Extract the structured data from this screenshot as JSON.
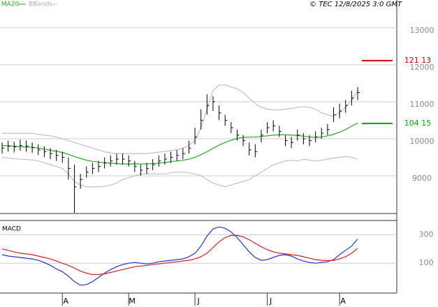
{
  "chart_data": {
    "type": "ohlc",
    "copyright": "© TEC 12/8/2025 3:0 GMT",
    "legend": [
      "MA20",
      "BBands"
    ],
    "ylim": [
      8000,
      13750
    ],
    "yticks": [
      9000,
      10000,
      11000,
      12000,
      13000
    ],
    "grid": true,
    "xticks": [
      {
        "value": 10,
        "label": "A"
      },
      {
        "value": 21,
        "label": "M"
      },
      {
        "value": 32,
        "label": "J"
      },
      {
        "value": 44,
        "label": "J"
      },
      {
        "value": 56,
        "label": "A"
      }
    ],
    "bar_color": "#000000",
    "close": [
      9750,
      9800,
      9780,
      9820,
      9800,
      9760,
      9700,
      9650,
      9600,
      9550,
      9500,
      9200,
      8700,
      8900,
      9100,
      9200,
      9250,
      9350,
      9400,
      9450,
      9450,
      9400,
      9250,
      9150,
      9200,
      9300,
      9400,
      9450,
      9500,
      9550,
      9600,
      9750,
      10050,
      10500,
      10900,
      11000,
      10700,
      10500,
      10300,
      10100,
      9950,
      9700,
      9650,
      10100,
      10300,
      10350,
      10200,
      9950,
      9900,
      10100,
      10000,
      9950,
      10050,
      10150,
      10250,
      10650,
      10750,
      10900,
      11100,
      11250
    ],
    "high": [
      9900,
      9950,
      9920,
      9980,
      9950,
      9900,
      9850,
      9800,
      9750,
      9700,
      9650,
      9500,
      9300,
      9050,
      9250,
      9350,
      9400,
      9500,
      9550,
      9600,
      9600,
      9550,
      9400,
      9300,
      9350,
      9450,
      9550,
      9600,
      9650,
      9700,
      9750,
      9950,
      10300,
      10800,
      11200,
      11150,
      10900,
      10650,
      10450,
      10250,
      10100,
      9900,
      9850,
      10250,
      10450,
      10500,
      10350,
      10100,
      10050,
      10250,
      10150,
      10100,
      10200,
      10300,
      10400,
      10850,
      10950,
      11050,
      11300,
      11400
    ],
    "low": [
      9600,
      9650,
      9630,
      9680,
      9650,
      9620,
      9560,
      9500,
      9450,
      9400,
      9350,
      8900,
      8000,
      8650,
      8950,
      9050,
      9100,
      9200,
      9250,
      9300,
      9300,
      9250,
      9100,
      9000,
      9050,
      9150,
      9250,
      9300,
      9350,
      9400,
      9450,
      9600,
      9850,
      10250,
      10650,
      10750,
      10500,
      10350,
      10150,
      9950,
      9800,
      9550,
      9500,
      9900,
      10150,
      10200,
      10050,
      9800,
      9750,
      9950,
      9850,
      9800,
      9900,
      10000,
      10100,
      10450,
      10550,
      10700,
      10900,
      11050
    ],
    "series": [
      {
        "name": "MA20",
        "color": "#22aa22",
        "values": [
          9820,
          9810,
          9800,
          9790,
          9780,
          9770,
          9750,
          9720,
          9690,
          9660,
          9630,
          9580,
          9520,
          9470,
          9420,
          9390,
          9370,
          9350,
          9340,
          9330,
          9320,
          9320,
          9320,
          9320,
          9320,
          9330,
          9340,
          9360,
          9380,
          9400,
          9420,
          9450,
          9500,
          9570,
          9650,
          9740,
          9830,
          9900,
          9960,
          10010,
          10040,
          10050,
          10050,
          10060,
          10080,
          10100,
          10110,
          10110,
          10100,
          10090,
          10070,
          10050,
          10040,
          10050,
          10080,
          10120,
          10180,
          10250,
          10340,
          10430
        ]
      },
      {
        "name": "BBands",
        "color": "#c0c0c0",
        "values": [
          10150,
          10150,
          10150,
          10150,
          10150,
          10150,
          10120,
          10100,
          10080,
          10050,
          10000,
          9950,
          9900,
          9850,
          9800,
          9750,
          9700,
          9650,
          9620,
          9600,
          9600,
          9600,
          9600,
          9600,
          9600,
          9620,
          9640,
          9660,
          9680,
          9700,
          9750,
          9820,
          9950,
          10300,
          10800,
          11300,
          11450,
          11450,
          11400,
          11350,
          11250,
          11100,
          10950,
          10850,
          10800,
          10780,
          10780,
          10800,
          10820,
          10850,
          10870,
          10850,
          10800,
          10700,
          10650,
          10600,
          10700,
          10850,
          11050,
          11300
        ],
        "lower": [
          9500,
          9480,
          9460,
          9450,
          9440,
          9430,
          9400,
          9350,
          9300,
          9250,
          9200,
          9050,
          8850,
          8750,
          8700,
          8700,
          8700,
          8720,
          8750,
          8800,
          8900,
          8950,
          9000,
          9050,
          9050,
          9050,
          9050,
          9050,
          9080,
          9100,
          9100,
          9080,
          9050,
          9000,
          8900,
          8800,
          8750,
          8700,
          8750,
          8800,
          8850,
          8900,
          9000,
          9100,
          9200,
          9300,
          9350,
          9400,
          9420,
          9400,
          9450,
          9420,
          9400,
          9420,
          9450,
          9480,
          9500,
          9520,
          9500,
          9450
        ]
      }
    ],
    "markers": [
      {
        "value": 12113,
        "value_label": "121 13",
        "color": "#cc0000"
      },
      {
        "value": 10415,
        "value_label": "104 15",
        "color": "#00aa00"
      }
    ],
    "macd": {
      "title": "MACD",
      "ylim": [
        -100,
        400
      ],
      "yticks": [
        100,
        300
      ],
      "series": [
        {
          "color": "#2233cc",
          "values": [
            160,
            150,
            145,
            140,
            135,
            130,
            120,
            105,
            85,
            60,
            40,
            10,
            -30,
            -55,
            -50,
            -30,
            0,
            30,
            55,
            75,
            90,
            100,
            105,
            100,
            95,
            100,
            110,
            115,
            120,
            125,
            130,
            145,
            170,
            220,
            290,
            340,
            355,
            345,
            320,
            280,
            230,
            180,
            140,
            120,
            125,
            140,
            155,
            160,
            150,
            130,
            115,
            105,
            100,
            105,
            110,
            125,
            160,
            190,
            220,
            270
          ]
        },
        {
          "color": "#cc2222",
          "values": [
            200,
            190,
            180,
            170,
            165,
            160,
            150,
            140,
            130,
            115,
            100,
            85,
            65,
            45,
            30,
            20,
            20,
            25,
            35,
            45,
            55,
            65,
            75,
            80,
            85,
            90,
            95,
            100,
            105,
            110,
            115,
            120,
            130,
            145,
            170,
            210,
            250,
            280,
            295,
            295,
            285,
            265,
            240,
            215,
            195,
            180,
            170,
            165,
            160,
            155,
            145,
            135,
            125,
            120,
            118,
            120,
            130,
            145,
            170,
            205
          ]
        }
      ]
    }
  }
}
